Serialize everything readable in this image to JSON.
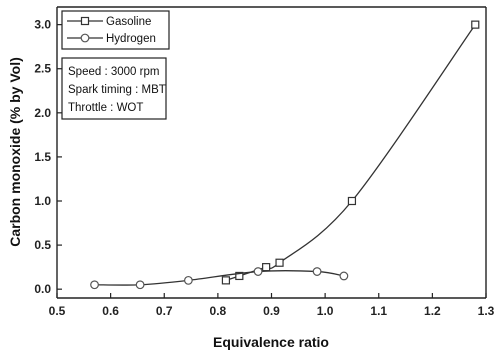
{
  "chart_data": {
    "type": "line",
    "xlabel": "Equivalence ratio",
    "ylabel": "Carbon monoxide (% by Vol)",
    "xlim": [
      0.5,
      1.3
    ],
    "ylim": [
      -0.1,
      3.2
    ],
    "xticks": [
      "0.5",
      "0.6",
      "0.7",
      "0.8",
      "0.9",
      "1.0",
      "1.1",
      "1.2",
      "1.3"
    ],
    "yticks": [
      "0.0",
      "0.5",
      "1.0",
      "1.5",
      "2.0",
      "2.5",
      "3.0"
    ],
    "legend_position": "top-left",
    "series": [
      {
        "name": "Gasoline",
        "marker": "square",
        "x": [
          0.815,
          0.84,
          0.89,
          0.915,
          1.05,
          1.28
        ],
        "y": [
          0.1,
          0.15,
          0.25,
          0.3,
          1.0,
          3.0
        ]
      },
      {
        "name": "Hydrogen",
        "marker": "circle",
        "x": [
          0.57,
          0.655,
          0.745,
          0.875,
          0.985,
          1.035
        ],
        "y": [
          0.05,
          0.05,
          0.1,
          0.2,
          0.2,
          0.15
        ]
      }
    ],
    "annotation_lines": [
      "Speed : 3000 rpm",
      "Spark timing : MBT",
      "Throttle : WOT"
    ]
  }
}
